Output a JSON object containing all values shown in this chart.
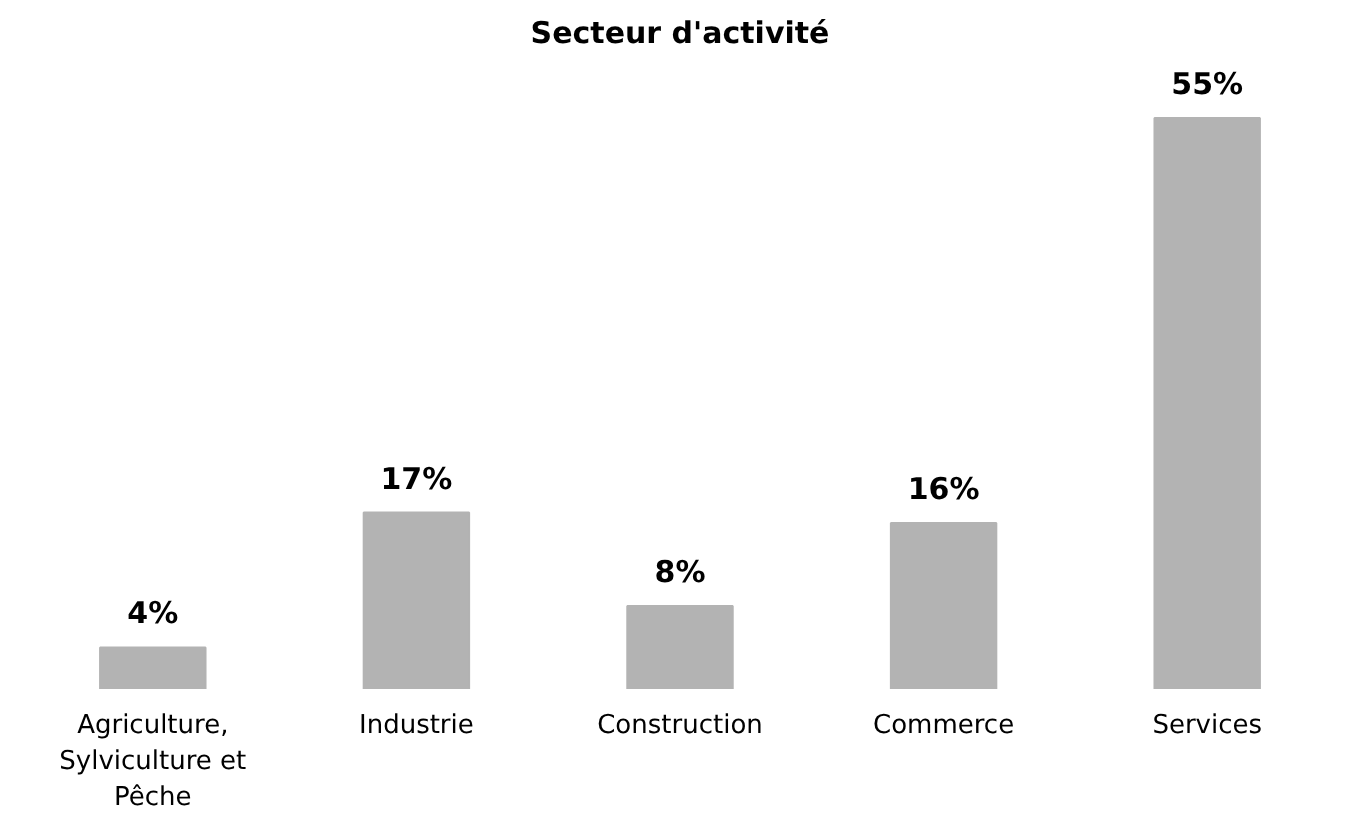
{
  "chart_data": {
    "type": "bar",
    "title": "Secteur d'activité",
    "categories": [
      "Agriculture, Sylviculture et Pêche",
      "Industrie",
      "Construction",
      "Commerce",
      "Services"
    ],
    "values": [
      4,
      17,
      8,
      16,
      55
    ],
    "color": "#b3b3b3",
    "data_labels": true,
    "value_labels": [
      "4%",
      "17%",
      "8%",
      "16%",
      "55%"
    ]
  }
}
